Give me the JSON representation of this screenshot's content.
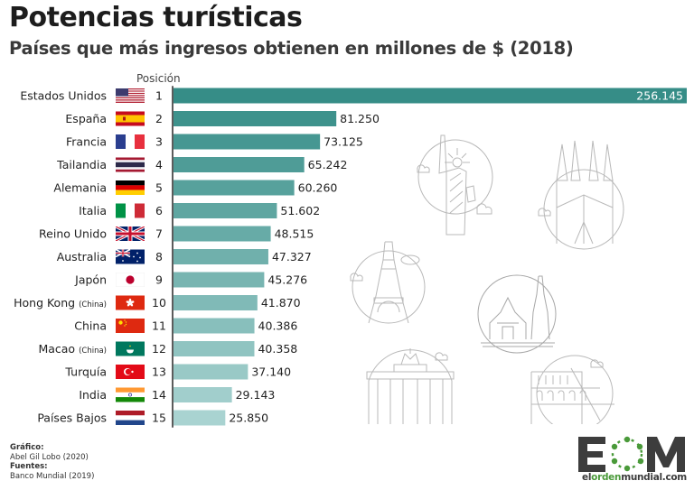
{
  "header": {
    "title": "Potencias turísticas",
    "subtitle": "Países que más ingresos obtienen en millones de $ (2018)"
  },
  "chart_data": {
    "type": "bar",
    "orientation": "horizontal",
    "title": "Potencias turísticas",
    "subtitle": "Países que más ingresos obtienen en millones de $ (2018)",
    "position_header": "Posición",
    "xlabel": "",
    "ylabel": "",
    "xlim": [
      0,
      256.145
    ],
    "grid": false,
    "legend": "none",
    "categories": [
      {
        "name": "Estados Unidos",
        "suffix": "",
        "flag": "us-flag-icon",
        "position": "1",
        "value": 256.145,
        "label": "256.145"
      },
      {
        "name": "España",
        "suffix": "",
        "flag": "spain-flag-icon",
        "position": "2",
        "value": 81.25,
        "label": "81.250"
      },
      {
        "name": "Francia",
        "suffix": "",
        "flag": "france-flag-icon",
        "position": "3",
        "value": 73.125,
        "label": "73.125"
      },
      {
        "name": "Tailandia",
        "suffix": "",
        "flag": "thailand-flag-icon",
        "position": "4",
        "value": 65.242,
        "label": "65.242"
      },
      {
        "name": "Alemania",
        "suffix": "",
        "flag": "germany-flag-icon",
        "position": "5",
        "value": 60.26,
        "label": "60.260"
      },
      {
        "name": "Italia",
        "suffix": "",
        "flag": "italy-flag-icon",
        "position": "6",
        "value": 51.602,
        "label": "51.602"
      },
      {
        "name": "Reino Unido",
        "suffix": "",
        "flag": "uk-flag-icon",
        "position": "7",
        "value": 48.515,
        "label": "48.515"
      },
      {
        "name": "Australia",
        "suffix": "",
        "flag": "australia-flag-icon",
        "position": "8",
        "value": 47.327,
        "label": "47.327"
      },
      {
        "name": "Japón",
        "suffix": "",
        "flag": "japan-flag-icon",
        "position": "9",
        "value": 45.276,
        "label": "45.276"
      },
      {
        "name": "Hong Kong",
        "suffix": "(China)",
        "flag": "hong-kong-flag-icon",
        "position": "10",
        "value": 41.87,
        "label": "41.870"
      },
      {
        "name": "China",
        "suffix": "",
        "flag": "china-flag-icon",
        "position": "11",
        "value": 40.386,
        "label": "40.386"
      },
      {
        "name": "Macao",
        "suffix": "(China)",
        "flag": "macao-flag-icon",
        "position": "12",
        "value": 40.358,
        "label": "40.358"
      },
      {
        "name": "Turquía",
        "suffix": "",
        "flag": "turkey-flag-icon",
        "position": "13",
        "value": 37.14,
        "label": "37.140"
      },
      {
        "name": "India",
        "suffix": "",
        "flag": "india-flag-icon",
        "position": "14",
        "value": 29.143,
        "label": "29.143"
      },
      {
        "name": "Países Bajos",
        "suffix": "",
        "flag": "netherlands-flag-icon",
        "position": "15",
        "value": 25.85,
        "label": "25.850"
      }
    ],
    "colors": {
      "bar_start": "#368d87",
      "bar_end": "#a9d3d1",
      "axis": "#333333",
      "first_label": "#ffffff",
      "label": "#222222"
    }
  },
  "illustrations": [
    "statue-of-liberty-icon",
    "sagrada-familia-icon",
    "eiffel-tower-icon",
    "thai-temple-icon",
    "brandenburg-gate-icon",
    "colosseum-icon"
  ],
  "footer": {
    "graphic_label": "Gráfico:",
    "graphic_author": "Abel Gil Lobo (2020)",
    "sources_label": "Fuentes:",
    "sources_value": "Banco Mundial (2019)"
  },
  "logo": {
    "letters": "EOM",
    "url_part1": "el",
    "url_part2": "orden",
    "url_part3": "mundial.com"
  }
}
